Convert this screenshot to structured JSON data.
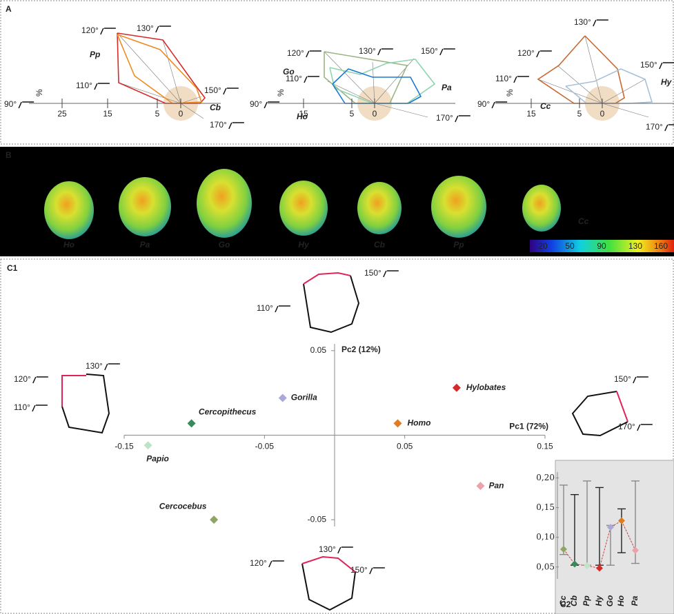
{
  "panel_a": {
    "label": "A",
    "diagrams": [
      {
        "angles": [
          "120°",
          "130°",
          "110°",
          "150°",
          "170°",
          "90°"
        ],
        "species": [
          "Pp",
          "Cb"
        ],
        "ticks": [
          25,
          15,
          5,
          0
        ],
        "unit": "%"
      },
      {
        "angles": [
          "120°",
          "130°",
          "150°",
          "110°",
          "170°",
          "90°"
        ],
        "species": [
          "Go",
          "Pa",
          "Ho"
        ],
        "ticks": [
          15,
          5,
          0
        ],
        "unit": "%"
      },
      {
        "angles": [
          "130°",
          "120°",
          "150°",
          "110°",
          "170°",
          "90°"
        ],
        "species": [
          "Cc",
          "Hy"
        ],
        "ticks": [
          15,
          5,
          0
        ],
        "unit": "%"
      }
    ]
  },
  "panel_b": {
    "label": "B",
    "specimens": [
      "Ho",
      "Pa",
      "Go",
      "Hy",
      "Cb",
      "Pp"
    ],
    "extra": "Cc",
    "colorbar_ticks": [
      20,
      50,
      90,
      130,
      160
    ]
  },
  "panel_c1": {
    "label": "C1",
    "outlines": [
      [
        "110°",
        "150°"
      ],
      [
        "120°",
        "130°",
        "110°"
      ],
      [
        "150°",
        "170°"
      ],
      [
        "120°",
        "130°",
        "150°"
      ]
    ]
  },
  "panel_c2": {
    "label": "C2"
  },
  "chart_data": [
    {
      "type": "scatter",
      "labels": [
        "Hylobates",
        "Gorilla",
        "Cercopithecus",
        "Homo",
        "Papio",
        "Pan",
        "Cercocebus"
      ],
      "x": [
        0.087,
        -0.037,
        -0.102,
        0.045,
        -0.133,
        0.104,
        -0.086
      ],
      "values": [
        0.028,
        0.022,
        0.007,
        0.007,
        -0.006,
        -0.03,
        -0.05
      ],
      "colors": [
        "#d62a2a",
        "#aaa8d8",
        "#3a8a5c",
        "#e07b20",
        "#bfe3c6",
        "#eba2aa",
        "#8ea564"
      ],
      "xlabel": "Pc1 (72%)",
      "ylabel": "Pc2 (12%)",
      "xlim": [
        -0.15,
        0.15
      ],
      "ylim": [
        -0.054,
        0.054
      ],
      "xticks": [
        -0.15,
        -0.05,
        0.05,
        0.15
      ],
      "yticks": [
        0.05,
        -0.05
      ]
    },
    {
      "type": "line",
      "categories": [
        "Cc",
        "Cb",
        "Pp",
        "Hy",
        "Go",
        "Ho",
        "Pa"
      ],
      "values": [
        0.08,
        0.055,
        0.052,
        0.048,
        0.117,
        0.128,
        0.078
      ],
      "lows": [
        0.071,
        0.053,
        0.053,
        0.053,
        0.053,
        0.074,
        0.056
      ],
      "highs": [
        0.188,
        0.172,
        0.195,
        0.184,
        0.12,
        0.148,
        0.195
      ],
      "colors": [
        "#8ea564",
        "#3a8a5c",
        "#bfe3c6",
        "#d62a2a",
        "#aaa8d8",
        "#e07b20",
        "#eba2aa"
      ],
      "color": "#d04040",
      "ylim": [
        0.03,
        0.21
      ],
      "yticks": [
        {
          "value": 0.05,
          "label": "0,05"
        },
        {
          "value": 0.1,
          "label": "0,10"
        },
        {
          "value": 0.15,
          "label": "0,15"
        },
        {
          "value": 0.2,
          "label": "0,20"
        }
      ]
    }
  ]
}
